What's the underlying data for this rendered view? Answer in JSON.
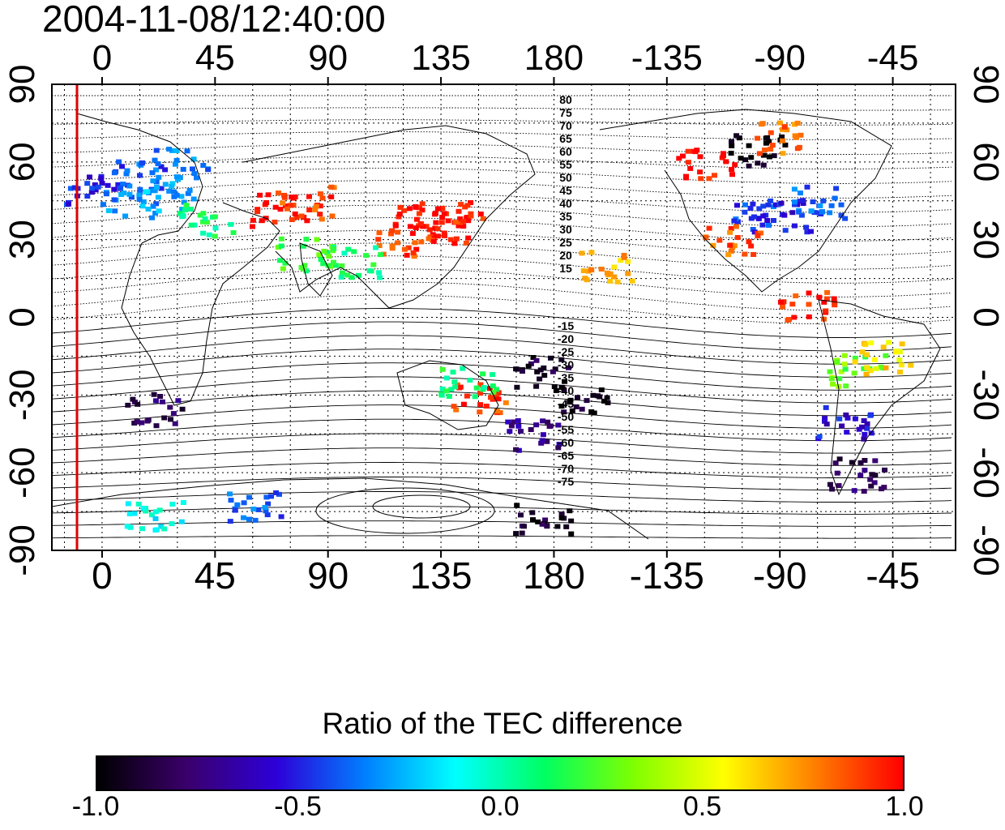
{
  "timestamp": "2004-11-08/12:40:00",
  "map": {
    "x_tick_labels": [
      "0",
      "45",
      "90",
      "135",
      "180",
      "-135",
      "-90",
      "-45"
    ],
    "y_tick_labels": [
      "90",
      "60",
      "30",
      "0",
      "-30",
      "-60",
      "-90"
    ],
    "north_contour_labels": [
      "80",
      "75",
      "70",
      "65",
      "60",
      "55",
      "50",
      "45",
      "40",
      "35",
      "30",
      "25",
      "20",
      "15"
    ],
    "south_contour_labels": [
      "-15",
      "-20",
      "-25",
      "-30",
      "-35",
      "-40",
      "-45",
      "-50",
      "-55",
      "-60",
      "-65",
      "-70",
      "-75"
    ],
    "red_line_color": "#e00000",
    "data_cells": [
      {
        "lon": -5,
        "lat": 50,
        "v": -0.5
      },
      {
        "lon": 15,
        "lat": 55,
        "v": -0.4
      },
      {
        "lon": 30,
        "lat": 60,
        "v": -0.35
      },
      {
        "lon": 10,
        "lat": 45,
        "v": -0.3
      },
      {
        "lon": 25,
        "lat": 48,
        "v": -0.25
      },
      {
        "lon": 40,
        "lat": 38,
        "v": 0.1
      },
      {
        "lon": 70,
        "lat": 42,
        "v": 1.0
      },
      {
        "lon": 80,
        "lat": 45,
        "v": 0.9
      },
      {
        "lon": 125,
        "lat": 38,
        "v": 1.0
      },
      {
        "lon": 135,
        "lat": 40,
        "v": 1.0
      },
      {
        "lon": 140,
        "lat": 35,
        "v": 0.95
      },
      {
        "lon": 120,
        "lat": 30,
        "v": 0.9
      },
      {
        "lon": 80,
        "lat": 25,
        "v": 0.2
      },
      {
        "lon": 100,
        "lat": 22,
        "v": 0.1
      },
      {
        "lon": 20,
        "lat": -35,
        "v": -0.8
      },
      {
        "lon": 150,
        "lat": -30,
        "v": 0.9
      },
      {
        "lon": 145,
        "lat": -25,
        "v": 0.1
      },
      {
        "lon": 170,
        "lat": -45,
        "v": -0.7
      },
      {
        "lon": 175,
        "lat": -20,
        "v": -0.9
      },
      {
        "lon": -100,
        "lat": 40,
        "v": -0.45
      },
      {
        "lon": -85,
        "lat": 40,
        "v": -0.5
      },
      {
        "lon": -75,
        "lat": 45,
        "v": -0.4
      },
      {
        "lon": -110,
        "lat": 30,
        "v": 0.85
      },
      {
        "lon": -120,
        "lat": 60,
        "v": 1.0
      },
      {
        "lon": -100,
        "lat": 65,
        "v": -1.0
      },
      {
        "lon": -90,
        "lat": 70,
        "v": 0.8
      },
      {
        "lon": -60,
        "lat": -20,
        "v": 0.3
      },
      {
        "lon": -50,
        "lat": -15,
        "v": 0.6
      },
      {
        "lon": -65,
        "lat": -40,
        "v": -0.55
      },
      {
        "lon": -60,
        "lat": -60,
        "v": -0.8
      },
      {
        "lon": 20,
        "lat": -75,
        "v": -0.1
      },
      {
        "lon": 60,
        "lat": -72,
        "v": -0.4
      },
      {
        "lon": 175,
        "lat": -77,
        "v": -0.9
      },
      {
        "lon": -170,
        "lat": -30,
        "v": -0.95
      },
      {
        "lon": -160,
        "lat": 20,
        "v": 0.7
      },
      {
        "lon": -80,
        "lat": 5,
        "v": 0.95
      }
    ]
  },
  "colorbar": {
    "title": "Ratio of the TEC difference",
    "tick_labels": [
      "-1.0",
      "-0.5",
      "0.0",
      "0.5",
      "1.0"
    ],
    "stops": [
      "#000000",
      "#3a006b",
      "#2d00d8",
      "#0080ff",
      "#00ffff",
      "#00ff60",
      "#7fff00",
      "#ffff00",
      "#ff8000",
      "#ff0000"
    ]
  }
}
